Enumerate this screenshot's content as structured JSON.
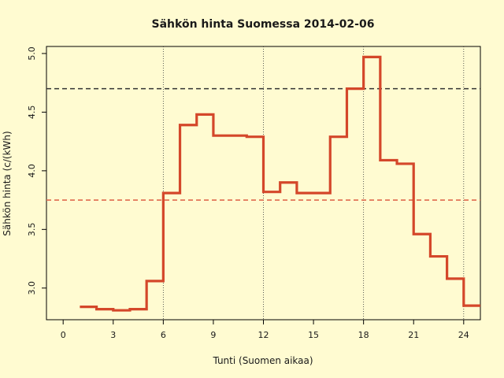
{
  "chart_data": {
    "type": "line",
    "title": "Sähkön hinta Suomessa 2014-02-06",
    "xlabel": "Tunti (Suomen aikaa)",
    "ylabel": "Sähkön hinta (c/(kWh)",
    "xlim": [
      -1,
      25
    ],
    "ylim": [
      2.73,
      5.06
    ],
    "xticks": [
      0,
      3,
      6,
      9,
      12,
      15,
      18,
      21,
      24
    ],
    "yticks": [
      3.0,
      3.5,
      4.0,
      4.5,
      5.0
    ],
    "ytick_labels": [
      "3.0",
      "3.5",
      "4.0",
      "4.5",
      "5.0"
    ],
    "grid": "vertical dotted lines at 6, 12, 18, 24",
    "vgrid": [
      6,
      12,
      18,
      24
    ],
    "step": "post",
    "series": [
      {
        "x": [
          1,
          2,
          3,
          4,
          5,
          6,
          7,
          8,
          9,
          10,
          11,
          12,
          13,
          14,
          15,
          16,
          17,
          18,
          19,
          20,
          21,
          22,
          23,
          24
        ],
        "values": [
          2.84,
          2.82,
          2.81,
          2.82,
          3.06,
          3.81,
          4.39,
          4.48,
          4.3,
          4.3,
          4.29,
          3.82,
          3.9,
          3.81,
          3.81,
          4.29,
          4.7,
          4.97,
          4.09,
          4.06,
          3.46,
          3.27,
          3.08,
          2.85
        ],
        "color": "#d4472a"
      }
    ],
    "reference_lines": [
      {
        "y": 4.7,
        "style": "dashed",
        "color": "#333333"
      },
      {
        "y": 3.75,
        "style": "dashed",
        "color": "#e06a4e"
      }
    ]
  }
}
